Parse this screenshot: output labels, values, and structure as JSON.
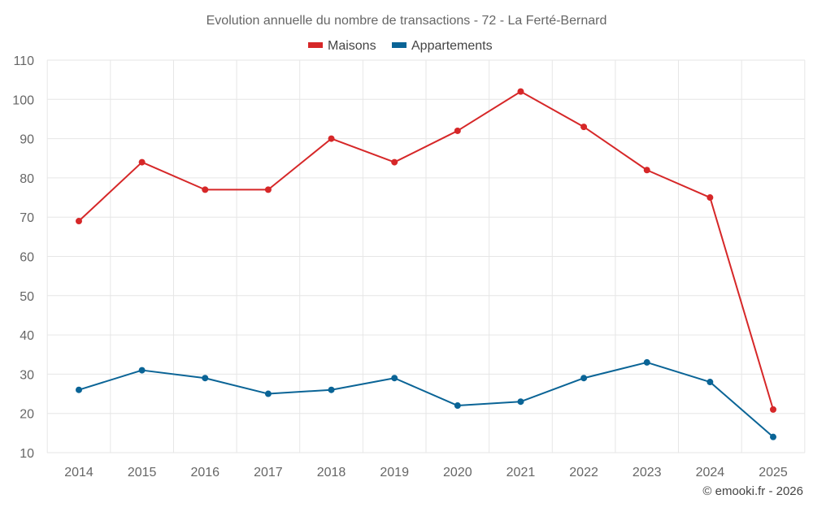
{
  "chart_data": {
    "type": "line",
    "title": "Evolution annuelle du nombre de transactions - 72 - La Ferté-Bernard",
    "categories": [
      "2014",
      "2015",
      "2016",
      "2017",
      "2018",
      "2019",
      "2020",
      "2021",
      "2022",
      "2023",
      "2024",
      "2025"
    ],
    "series": [
      {
        "name": "Maisons",
        "color": "#d62728",
        "values": [
          69,
          84,
          77,
          77,
          90,
          84,
          92,
          102,
          93,
          82,
          75,
          21
        ]
      },
      {
        "name": "Appartements",
        "color": "#0a6496",
        "values": [
          26,
          31,
          29,
          25,
          26,
          29,
          22,
          23,
          29,
          33,
          28,
          14
        ]
      }
    ],
    "ylim": [
      10,
      110
    ],
    "yticks": [
      10,
      20,
      30,
      40,
      50,
      60,
      70,
      80,
      90,
      100,
      110
    ],
    "grid": true,
    "legend_position": "top-center",
    "xlabel": "",
    "ylabel": ""
  },
  "credit": "© emooki.fr - 2026"
}
